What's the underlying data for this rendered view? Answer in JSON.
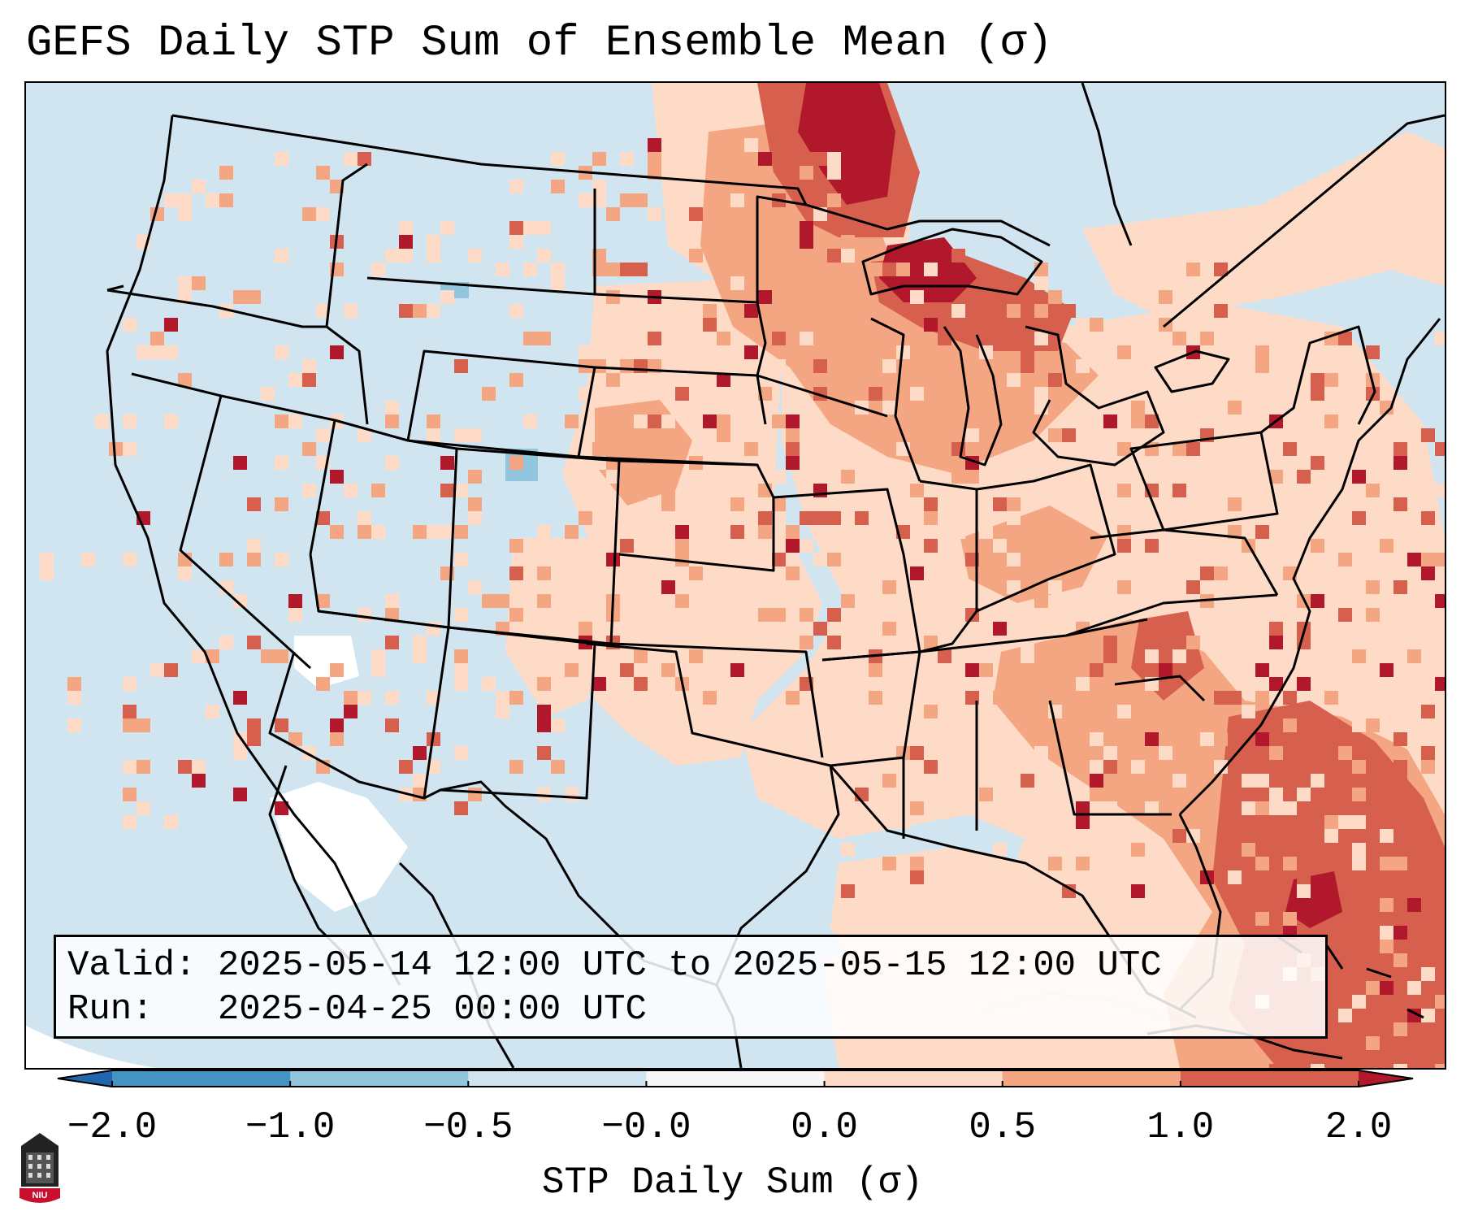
{
  "title": "GEFS Daily STP Sum of Ensemble Mean (σ)",
  "info": {
    "valid_label": "Valid:",
    "valid_value": "2025-05-14 12:00 UTC to 2025-05-15 12:00 UTC",
    "run_label": "Run:",
    "run_value": "2025-04-25 00:00 UTC"
  },
  "colorbar": {
    "label": "STP Daily Sum (σ)",
    "ticks": [
      "−2.0",
      "−1.0",
      "−0.5",
      "−0.0",
      "0.0",
      "0.5",
      "1.0",
      "2.0"
    ],
    "bins": [
      {
        "range": "< -2.0",
        "color": "#2166ac"
      },
      {
        "range": "-2.0 to -1.0",
        "color": "#4393c3"
      },
      {
        "range": "-1.0 to -0.5",
        "color": "#92c5de"
      },
      {
        "range": "-0.5 to -0.0",
        "color": "#d1e5f0"
      },
      {
        "range": "-0.0 to 0.0",
        "color": "#f7f7f7"
      },
      {
        "range": "0.0 to 0.5",
        "color": "#fddbc7"
      },
      {
        "range": "0.5 to 1.0",
        "color": "#f4a582"
      },
      {
        "range": "1.0 to 2.0",
        "color": "#d6604d"
      },
      {
        "range": "> 2.0",
        "color": "#b2182b"
      }
    ]
  },
  "map": {
    "projection": "Lambert Conformal (CONUS)",
    "background_color": "#d1e5f0",
    "outside_domain_color": "#ffffff",
    "features": [
      "state-borders",
      "coastlines",
      "country-borders"
    ]
  },
  "logo": {
    "text": "NIU",
    "color": "#c8102e"
  }
}
